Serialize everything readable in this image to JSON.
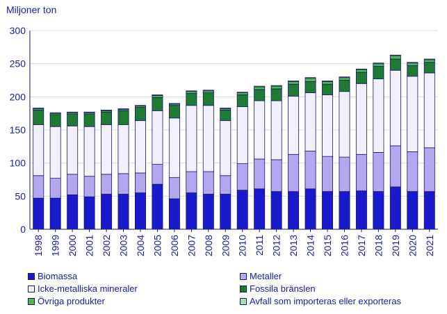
{
  "chart_data": {
    "type": "bar",
    "stacked": true,
    "title": "",
    "ylabel": "Miljoner ton",
    "xlabel": "",
    "ylim": [
      0,
      300
    ],
    "yticks": [
      0,
      50,
      100,
      150,
      200,
      250,
      300
    ],
    "categories": [
      "1998",
      "1999",
      "2000",
      "2001",
      "2002",
      "2003",
      "2004",
      "2005",
      "2006",
      "2007",
      "2008",
      "2009",
      "2010",
      "2011",
      "2012",
      "2013",
      "2014",
      "2015",
      "2016",
      "2017",
      "2018",
      "2019",
      "2020",
      "2021"
    ],
    "series": [
      {
        "name": "Biomassa",
        "color": "#1a1acc",
        "values": [
          47,
          47,
          52,
          49,
          53,
          53,
          55,
          68,
          46,
          55,
          53,
          53,
          59,
          61,
          57,
          57,
          61,
          57,
          57,
          58,
          57,
          64,
          57,
          57
        ]
      },
      {
        "name": "Metaller",
        "color": "#b3a8f0",
        "values": [
          34,
          30,
          31,
          31,
          30,
          31,
          30,
          30,
          32,
          32,
          34,
          28,
          40,
          45,
          48,
          56,
          57,
          53,
          52,
          55,
          59,
          62,
          60,
          66
        ]
      },
      {
        "name": "Icke-metalliska mineraler",
        "color": "#f2f0ff",
        "values": [
          77,
          78,
          73,
          75,
          75,
          74,
          79,
          81,
          90,
          100,
          100,
          83,
          86,
          88,
          89,
          88,
          88,
          93,
          99,
          107,
          111,
          114,
          114,
          113
        ]
      },
      {
        "name": "Fossila bränslen",
        "color": "#1f7a33",
        "values": [
          22,
          18,
          18,
          19,
          19,
          21,
          20,
          20,
          19,
          18,
          19,
          16,
          18,
          17,
          18,
          18,
          17,
          16,
          17,
          17,
          19,
          17,
          16,
          16
        ]
      },
      {
        "name": "Övriga produkter",
        "color": "#4cb84c",
        "values": [
          2,
          2,
          2,
          2,
          2,
          2,
          2,
          3,
          2,
          3,
          3,
          2,
          3,
          4,
          4,
          4,
          5,
          4,
          4,
          4,
          4,
          5,
          4,
          4
        ]
      },
      {
        "name": "Avfall som importeras eller exporteras",
        "color": "#a8e0b0",
        "values": [
          1,
          1,
          1,
          1,
          1,
          1,
          1,
          1,
          1,
          1,
          1,
          1,
          1,
          1,
          1,
          1,
          1,
          1,
          1,
          1,
          1,
          1,
          1,
          1
        ]
      }
    ],
    "legend_placement": "bottom"
  }
}
